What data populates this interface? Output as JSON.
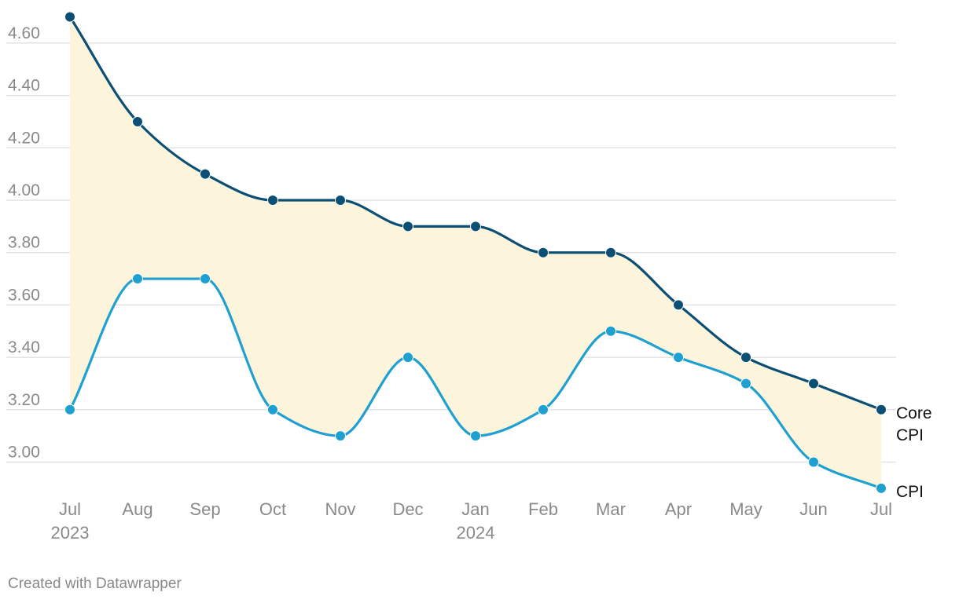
{
  "chart_data": {
    "type": "line",
    "categories": [
      "Jul",
      "Aug",
      "Sep",
      "Oct",
      "Nov",
      "Dec",
      "Jan",
      "Feb",
      "Mar",
      "Apr",
      "May",
      "Jun",
      "Jul"
    ],
    "year_labels": [
      {
        "index": 0,
        "label": "2023"
      },
      {
        "index": 6,
        "label": "2024"
      }
    ],
    "series": [
      {
        "name": "Core CPI",
        "label_lines": [
          "Core",
          "CPI"
        ],
        "color": "#0b4f74",
        "values": [
          4.7,
          4.3,
          4.1,
          4.0,
          4.0,
          3.9,
          3.9,
          3.8,
          3.8,
          3.6,
          3.4,
          3.3,
          3.2
        ]
      },
      {
        "name": "CPI",
        "label_lines": [
          "CPI"
        ],
        "color": "#1ea0d0",
        "values": [
          3.2,
          3.7,
          3.7,
          3.2,
          3.1,
          3.4,
          3.1,
          3.2,
          3.5,
          3.4,
          3.3,
          3.0,
          2.9
        ]
      }
    ],
    "area_between_color": "#fdf4dc",
    "yticks": [
      "3.00",
      "3.20",
      "3.40",
      "3.60",
      "3.80",
      "4.00",
      "4.20",
      "4.40",
      "4.60"
    ],
    "grid": true,
    "title": "",
    "xlabel": "",
    "ylabel": ""
  },
  "footer": {
    "credit": "Created with Datawrapper"
  }
}
